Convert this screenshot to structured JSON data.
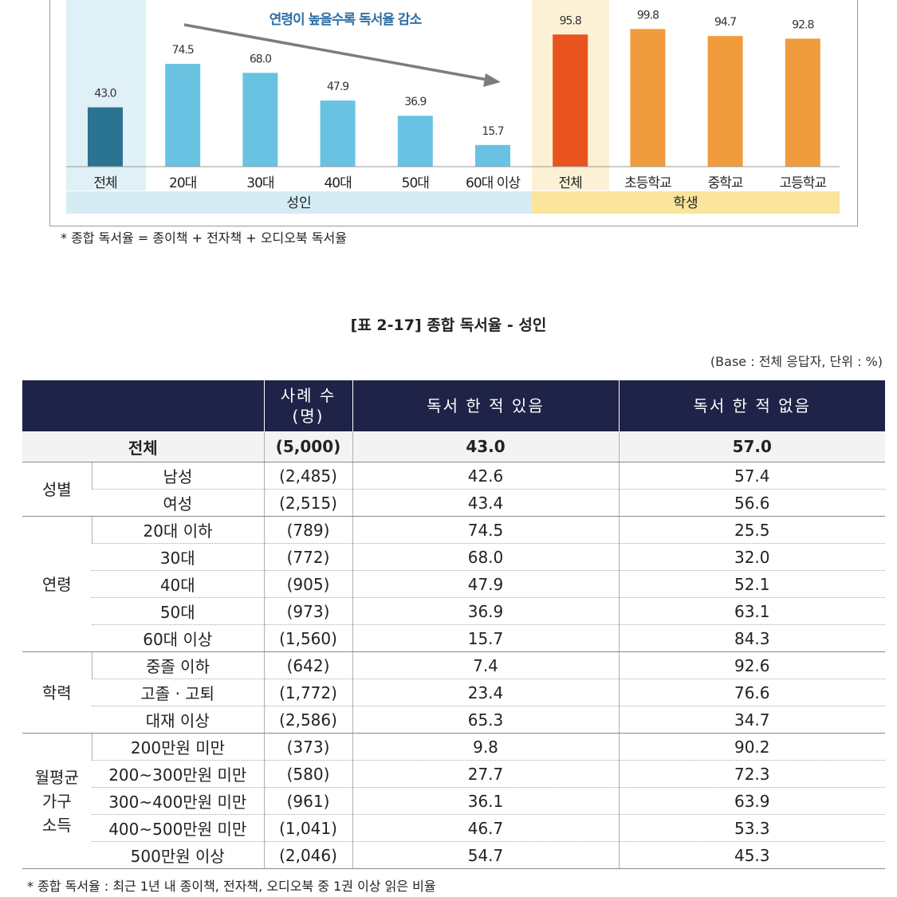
{
  "chart_data": {
    "type": "bar",
    "categories": [
      "전체",
      "20대",
      "30대",
      "40대",
      "50대",
      "60대 이상",
      "전체",
      "초등학교",
      "중학교",
      "고등학교"
    ],
    "values": [
      43.0,
      74.5,
      68.0,
      47.9,
      36.9,
      15.7,
      95.8,
      99.8,
      94.7,
      92.8
    ],
    "value_labels": [
      "43.0",
      "74.5",
      "68.0",
      "47.9",
      "36.9",
      "15.7",
      "95.8",
      "99.8",
      "94.7",
      "92.8"
    ],
    "bar_colors": [
      "#2a7491",
      "#69c2e2",
      "#69c2e2",
      "#69c2e2",
      "#69c2e2",
      "#69c2e2",
      "#e8531e",
      "#f09c3c",
      "#f09c3c",
      "#f09c3c"
    ],
    "groups": [
      {
        "label": "성인",
        "color": "#d5ecf4"
      },
      {
        "label": "학생",
        "color": "#fbe49b"
      }
    ],
    "highlight_colors": {
      "adult_total": "#dff0f7",
      "student_total": "#fdf1d5"
    },
    "annotation": "연령이 높을수록 독서율 감소",
    "annotation_color": "#2f6fa6",
    "arrow_color": "#7d7d7d",
    "ylim": [
      0,
      100
    ]
  },
  "chart_note": "* 종합 독서율 = 종이책 + 전자책 + 오디오북 독서율",
  "table": {
    "title": "[표 2-17] 종합 독서율 - 성인",
    "base_note": "(Base : 전체 응답자, 단위 : %)",
    "headers": {
      "count_line1": "사례 수",
      "count_line2": "(명)",
      "yes": "독서 한 적 있음",
      "no": "독서 한 적 없음"
    },
    "total": {
      "label": "전체",
      "count": "(5,000)",
      "yes": "43.0",
      "no": "57.0"
    },
    "groups": [
      {
        "label_lines": [
          "성별"
        ],
        "rows": [
          {
            "label": "남성",
            "count": "(2,485)",
            "yes": "42.6",
            "no": "57.4"
          },
          {
            "label": "여성",
            "count": "(2,515)",
            "yes": "43.4",
            "no": "56.6"
          }
        ]
      },
      {
        "label_lines": [
          "연령"
        ],
        "rows": [
          {
            "label": "20대 이하",
            "count": "(789)",
            "yes": "74.5",
            "no": "25.5"
          },
          {
            "label": "30대",
            "count": "(772)",
            "yes": "68.0",
            "no": "32.0"
          },
          {
            "label": "40대",
            "count": "(905)",
            "yes": "47.9",
            "no": "52.1"
          },
          {
            "label": "50대",
            "count": "(973)",
            "yes": "36.9",
            "no": "63.1"
          },
          {
            "label": "60대 이상",
            "count": "(1,560)",
            "yes": "15.7",
            "no": "84.3"
          }
        ]
      },
      {
        "label_lines": [
          "학력"
        ],
        "rows": [
          {
            "label": "중졸 이하",
            "count": "(642)",
            "yes": "7.4",
            "no": "92.6"
          },
          {
            "label": "고졸 · 고퇴",
            "count": "(1,772)",
            "yes": "23.4",
            "no": "76.6"
          },
          {
            "label": "대재 이상",
            "count": "(2,586)",
            "yes": "65.3",
            "no": "34.7"
          }
        ]
      },
      {
        "label_lines": [
          "월평균",
          "가구",
          "소득"
        ],
        "rows": [
          {
            "label": "200만원 미만",
            "count": "(373)",
            "yes": "9.8",
            "no": "90.2"
          },
          {
            "label": "200~300만원 미만",
            "count": "(580)",
            "yes": "27.7",
            "no": "72.3"
          },
          {
            "label": "300~400만원 미만",
            "count": "(961)",
            "yes": "36.1",
            "no": "63.9"
          },
          {
            "label": "400~500만원 미만",
            "count": "(1,041)",
            "yes": "46.7",
            "no": "53.3"
          },
          {
            "label": "500만원 이상",
            "count": "(2,046)",
            "yes": "54.7",
            "no": "45.3"
          }
        ]
      }
    ],
    "footnote": "* 종합 독서율 : 최근 1년 내 종이책, 전자책, 오디오북 중 1권 이상 읽은 비율"
  }
}
